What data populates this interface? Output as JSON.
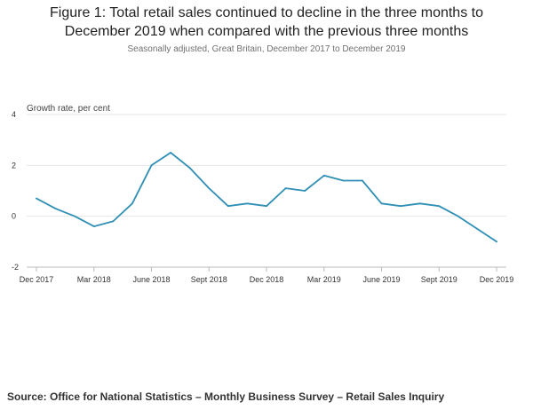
{
  "title_line1": "Figure 1: Total retail sales continued to decline in the three months to",
  "title_line2": "December 2019 when compared with the previous three months",
  "subtitle": "Seasonally adjusted, Great Britain, December 2017 to December 2019",
  "source": "Source: Office for National Statistics – Monthly Business Survey – Retail Sales Inquiry",
  "colors": {
    "line": "#2f8fb5",
    "grid": "#e6e6e6",
    "axis": "#bbbbbb"
  },
  "chart_data": {
    "type": "line",
    "ylabel": "Growth rate, per cent",
    "ylim": [
      -2,
      4
    ],
    "y_ticks": [
      -2,
      0,
      2,
      4
    ],
    "grid": true,
    "x": [
      "Dec 2017",
      "Jan 2018",
      "Feb 2018",
      "Mar 2018",
      "Apr 2018",
      "May 2018",
      "Jun 2018",
      "Jul 2018",
      "Aug 2018",
      "Sep 2018",
      "Oct 2018",
      "Nov 2018",
      "Dec 2018",
      "Jan 2019",
      "Feb 2019",
      "Mar 2019",
      "Apr 2019",
      "May 2019",
      "Jun 2019",
      "Jul 2019",
      "Aug 2019",
      "Sep 2019",
      "Oct 2019",
      "Nov 2019",
      "Dec 2019"
    ],
    "x_tick_labels": [
      {
        "label": "Dec 2017",
        "index": 0
      },
      {
        "label": "Mar 2018",
        "index": 3
      },
      {
        "label": "June 2018",
        "index": 6
      },
      {
        "label": "Sept 2018",
        "index": 9
      },
      {
        "label": "Dec 2018",
        "index": 12
      },
      {
        "label": "Mar 2019",
        "index": 15
      },
      {
        "label": "June 2019",
        "index": 18
      },
      {
        "label": "Sept 2019",
        "index": 21
      },
      {
        "label": "Dec 2019",
        "index": 24
      }
    ],
    "series": [
      {
        "values": [
          0.7,
          0.3,
          0.0,
          -0.4,
          -0.2,
          0.5,
          2.0,
          2.5,
          1.9,
          1.1,
          0.4,
          0.5,
          0.4,
          1.1,
          1.0,
          1.6,
          1.4,
          1.4,
          0.5,
          0.4,
          0.5,
          0.4,
          0.0,
          -0.5,
          -1.0
        ]
      }
    ]
  }
}
